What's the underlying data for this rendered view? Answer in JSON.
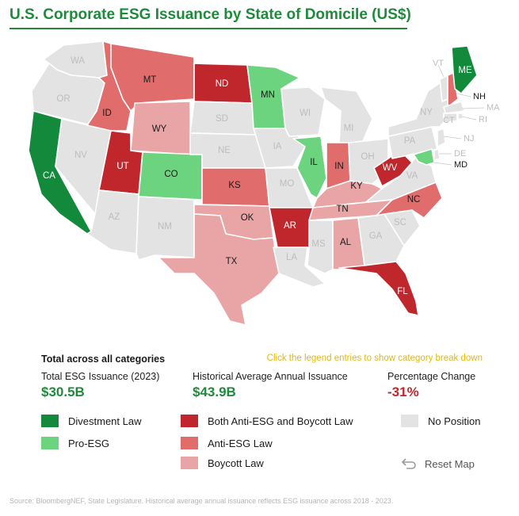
{
  "title": "U.S. Corporate ESG Issuance by State of Domicile (US$)",
  "colors": {
    "divestment": "#138a3b",
    "pro_esg": "#6cd37e",
    "both": "#c0272d",
    "anti_esg": "#e06c6c",
    "boycott": "#e9a5a5",
    "no_position": "#e3e3e3",
    "title_green": "#1f8a3c",
    "hint_yellow": "#e6b800"
  },
  "states": {
    "WA": {
      "label": "WA",
      "category": "no_position"
    },
    "OR": {
      "label": "OR",
      "category": "no_position"
    },
    "CA": {
      "label": "CA",
      "category": "divestment"
    },
    "NV": {
      "label": "NV",
      "category": "no_position"
    },
    "ID": {
      "label": "ID",
      "category": "anti_esg"
    },
    "MT": {
      "label": "MT",
      "category": "anti_esg"
    },
    "WY": {
      "label": "WY",
      "category": "boycott"
    },
    "UT": {
      "label": "UT",
      "category": "both"
    },
    "AZ": {
      "label": "AZ",
      "category": "no_position"
    },
    "CO": {
      "label": "CO",
      "category": "pro_esg"
    },
    "NM": {
      "label": "NM",
      "category": "no_position"
    },
    "ND": {
      "label": "ND",
      "category": "both"
    },
    "SD": {
      "label": "SD",
      "category": "no_position"
    },
    "NE": {
      "label": "NE",
      "category": "no_position"
    },
    "KS": {
      "label": "KS",
      "category": "anti_esg"
    },
    "OK": {
      "label": "OK",
      "category": "boycott"
    },
    "TX": {
      "label": "TX",
      "category": "boycott"
    },
    "MN": {
      "label": "MN",
      "category": "pro_esg"
    },
    "IA": {
      "label": "IA",
      "category": "no_position"
    },
    "MO": {
      "label": "MO",
      "category": "no_position"
    },
    "AR": {
      "label": "AR",
      "category": "both"
    },
    "LA": {
      "label": "LA",
      "category": "no_position"
    },
    "WI": {
      "label": "WI",
      "category": "no_position"
    },
    "IL": {
      "label": "IL",
      "category": "pro_esg"
    },
    "MI": {
      "label": "MI",
      "category": "no_position"
    },
    "IN": {
      "label": "IN",
      "category": "anti_esg"
    },
    "OH": {
      "label": "OH",
      "category": "no_position"
    },
    "KY": {
      "label": "KY",
      "category": "boycott"
    },
    "TN": {
      "label": "TN",
      "category": "boycott"
    },
    "MS": {
      "label": "MS",
      "category": "no_position"
    },
    "AL": {
      "label": "AL",
      "category": "boycott"
    },
    "GA": {
      "label": "GA",
      "category": "no_position"
    },
    "FL": {
      "label": "FL",
      "category": "both"
    },
    "SC": {
      "label": "SC",
      "category": "no_position"
    },
    "NC": {
      "label": "NC",
      "category": "anti_esg"
    },
    "VA": {
      "label": "VA",
      "category": "no_position"
    },
    "WV": {
      "label": "WV",
      "category": "both"
    },
    "PA": {
      "label": "PA",
      "category": "no_position"
    },
    "NY": {
      "label": "NY",
      "category": "no_position"
    },
    "VT": {
      "label": "VT",
      "category": "no_position"
    },
    "NH": {
      "label": "NH",
      "category": "anti_esg"
    },
    "ME": {
      "label": "ME",
      "category": "divestment"
    },
    "MA": {
      "label": "MA",
      "category": "no_position"
    },
    "RI": {
      "label": "RI",
      "category": "no_position"
    },
    "CT": {
      "label": "CT",
      "category": "no_position"
    },
    "NJ": {
      "label": "NJ",
      "category": "no_position"
    },
    "DE": {
      "label": "DE",
      "category": "no_position"
    },
    "MD": {
      "label": "MD",
      "category": "pro_esg"
    }
  },
  "stats": {
    "heading": "Total across all categories",
    "hint": "Click the legend entries to show category break down",
    "total_label": "Total ESG Issuance (2023)",
    "total_value": "$30.5B",
    "avg_label": "Historical Average Annual Issuance",
    "avg_value": "$43.9B",
    "change_label": "Percentage Change",
    "change_value": "-31%"
  },
  "legend": {
    "divestment": "Divestment Law",
    "pro_esg": "Pro-ESG",
    "both": "Both Anti-ESG and Boycott Law",
    "anti_esg": "Anti-ESG Law",
    "boycott": "Boycott Law",
    "no_position": "No Position"
  },
  "reset_label": "Reset Map",
  "source": "Source: BloombergNEF, State Legislature. Historical average annual issuance reflects ESG issuance across 2018 - 2023."
}
